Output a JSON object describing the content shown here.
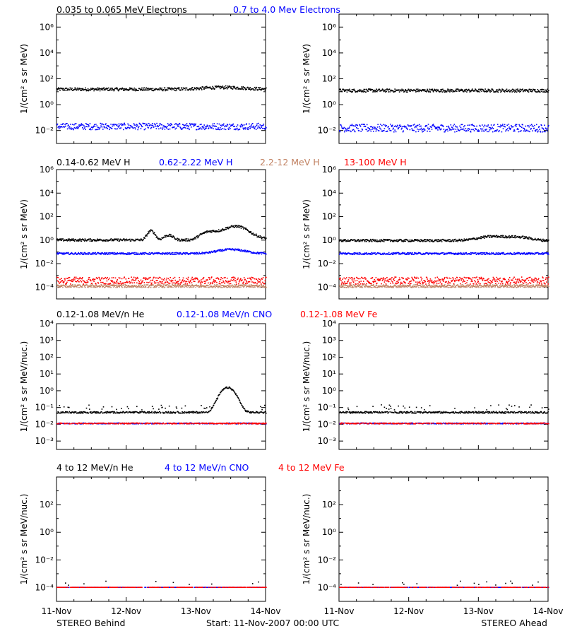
{
  "colors": {
    "black": "#000000",
    "blue": "#0000ff",
    "red": "#ff0000",
    "tan": "#c08060",
    "tan_dash": "#c8a090"
  },
  "footer": {
    "left": "STEREO Behind",
    "center": "Start: 11-Nov-2007 00:00 UTC",
    "right": "STEREO Ahead"
  },
  "x_axis": {
    "ticks": [
      "11-Nov",
      "12-Nov",
      "13-Nov",
      "14-Nov"
    ],
    "range_days": [
      0,
      3
    ]
  },
  "chart_data": [
    {
      "type": "scatter",
      "id": "electrons",
      "ylabel": "1/(cm² s sr MeV)",
      "y_scale": "log",
      "ylim_exp": [
        -3,
        7
      ],
      "ytick_exps": [
        -2,
        0,
        2,
        4,
        6
      ],
      "legend": [
        {
          "label": "0.035 to 0.065 MeV Electrons",
          "color": "#000000"
        },
        {
          "label": "0.7 to 4.0 Mev Electrons",
          "color": "#0000ff"
        }
      ],
      "panels": {
        "behind": [
          {
            "name": "0.035 to 0.065 MeV Electrons",
            "color": "#000000",
            "base": 15,
            "jitter": 0.12,
            "bumps": [
              [
                2.4,
                0.4,
                1.4
              ]
            ]
          },
          {
            "name": "0.7 to 4.0 Mev Electrons",
            "color": "#0000ff",
            "base": 0.02,
            "jitter": 0.25,
            "bumps": []
          }
        ],
        "ahead": [
          {
            "name": "0.035 to 0.065 MeV Electrons",
            "color": "#000000",
            "base": 12,
            "jitter": 0.12,
            "bumps": []
          },
          {
            "name": "0.7 to 4.0 Mev Electrons",
            "color": "#0000ff",
            "base": 0.015,
            "jitter": 0.3,
            "bumps": []
          }
        ]
      }
    },
    {
      "type": "scatter",
      "id": "protons",
      "ylabel": "1/(cm² s sr MeV)",
      "y_scale": "log",
      "ylim_exp": [
        -5,
        6
      ],
      "ytick_exps": [
        -4,
        -2,
        0,
        2,
        4,
        6
      ],
      "legend": [
        {
          "label": "0.14-0.62 MeV H",
          "color": "#000000"
        },
        {
          "label": "0.62-2.22 MeV H",
          "color": "#0000ff"
        },
        {
          "label": "2.2-12 MeV H",
          "color": "#c08060"
        },
        {
          "label": "13-100 MeV H",
          "color": "#ff0000"
        }
      ],
      "panels": {
        "behind": [
          {
            "name": "0.14-0.62 MeV H",
            "color": "#000000",
            "base": 1.0,
            "jitter": 0.1,
            "bumps": [
              [
                1.35,
                0.06,
                6
              ],
              [
                1.6,
                0.08,
                2.5
              ],
              [
                2.15,
                0.12,
                4
              ],
              [
                2.5,
                0.18,
                10
              ],
              [
                2.75,
                0.2,
                2.5
              ]
            ]
          },
          {
            "name": "0.62-2.22 MeV H",
            "color": "#0000ff",
            "base": 0.07,
            "jitter": 0.08,
            "bumps": [
              [
                2.5,
                0.25,
                2.2
              ]
            ]
          },
          {
            "name": "2.2-12 MeV H",
            "color": "#c08060",
            "base": 0.00012,
            "jitter": 0.12,
            "bumps": []
          },
          {
            "name": "13-100 MeV H",
            "color": "#ff0000",
            "base": 0.00035,
            "jitter": 0.3,
            "bumps": []
          }
        ],
        "ahead": [
          {
            "name": "0.14-0.62 MeV H",
            "color": "#000000",
            "base": 0.9,
            "jitter": 0.1,
            "bumps": [
              [
                2.2,
                0.25,
                2.2
              ],
              [
                2.6,
                0.2,
                1.8
              ]
            ]
          },
          {
            "name": "0.62-2.22 MeV H",
            "color": "#0000ff",
            "base": 0.07,
            "jitter": 0.08,
            "bumps": []
          },
          {
            "name": "2.2-12 MeV H",
            "color": "#c08060",
            "base": 0.00012,
            "jitter": 0.12,
            "bumps": []
          },
          {
            "name": "13-100 MeV H",
            "color": "#ff0000",
            "base": 0.00035,
            "jitter": 0.3,
            "bumps": []
          }
        ]
      }
    },
    {
      "type": "scatter",
      "id": "heavy-low",
      "ylabel": "1/(cm² s sr MeV/nuc.)",
      "y_scale": "log",
      "ylim_exp": [
        -3.5,
        4
      ],
      "ytick_exps": [
        -3,
        -2,
        -1,
        0,
        1,
        2,
        3,
        4
      ],
      "legend": [
        {
          "label": "0.12-1.08 MeV/n He",
          "color": "#000000"
        },
        {
          "label": "0.12-1.08 MeV/n CNO",
          "color": "#0000ff"
        },
        {
          "label": "0.12-1.08 MeV Fe",
          "color": "#ff0000"
        }
      ],
      "panels": {
        "behind": [
          {
            "name": "0.12-1.08 MeV/n He",
            "color": "#000000",
            "base": 0.05,
            "jitter": 0.05,
            "bumps": [
              [
                2.45,
                0.12,
                30
              ]
            ],
            "extra": 0.1
          },
          {
            "name": "0.12-1.08 MeV/n CNO",
            "color": "#0000ff",
            "base": 0.011,
            "jitter": 0.03,
            "bumps": []
          },
          {
            "name": "0.12-1.08 MeV Fe",
            "color": "#ff0000",
            "base": 0.011,
            "jitter": 0.03,
            "bumps": []
          }
        ],
        "ahead": [
          {
            "name": "0.12-1.08 MeV/n He",
            "color": "#000000",
            "base": 0.05,
            "jitter": 0.05,
            "bumps": [],
            "extra": 0.1
          },
          {
            "name": "0.12-1.08 MeV/n CNO",
            "color": "#0000ff",
            "base": 0.011,
            "jitter": 0.03,
            "bumps": []
          },
          {
            "name": "0.12-1.08 MeV Fe",
            "color": "#ff0000",
            "base": 0.011,
            "jitter": 0.03,
            "bumps": []
          }
        ]
      }
    },
    {
      "type": "scatter",
      "id": "heavy-high",
      "ylabel": "1/(cm² s sr MeV/nuc.)",
      "y_scale": "log",
      "ylim_exp": [
        -5,
        4
      ],
      "ytick_exps": [
        -4,
        -2,
        0,
        2
      ],
      "legend": [
        {
          "label": "4 to 12 MeV/n He",
          "color": "#000000"
        },
        {
          "label": "4 to 12 MeV/n CNO",
          "color": "#0000ff"
        },
        {
          "label": "4 to 12 MeV Fe",
          "color": "#ff0000"
        }
      ],
      "panels": {
        "behind": [
          {
            "name": "4 to 12 MeV/n He",
            "color": "#000000",
            "base": 0.0001,
            "jitter": 0.0,
            "bumps": [],
            "sparse": 0.0002
          },
          {
            "name": "4 to 12 MeV/n CNO",
            "color": "#0000ff",
            "base": 0.0001,
            "jitter": 0.0,
            "bumps": []
          },
          {
            "name": "4 to 12 MeV Fe",
            "color": "#ff0000",
            "base": 0.0001,
            "jitter": 0.0,
            "bumps": []
          }
        ],
        "ahead": [
          {
            "name": "4 to 12 MeV/n He",
            "color": "#000000",
            "base": 0.0001,
            "jitter": 0.0,
            "bumps": [],
            "sparse": 0.0002
          },
          {
            "name": "4 to 12 MeV/n CNO",
            "color": "#0000ff",
            "base": 0.0001,
            "jitter": 0.0,
            "bumps": []
          },
          {
            "name": "4 to 12 MeV Fe",
            "color": "#ff0000",
            "base": 0.0001,
            "jitter": 0.0,
            "bumps": []
          }
        ]
      }
    }
  ]
}
